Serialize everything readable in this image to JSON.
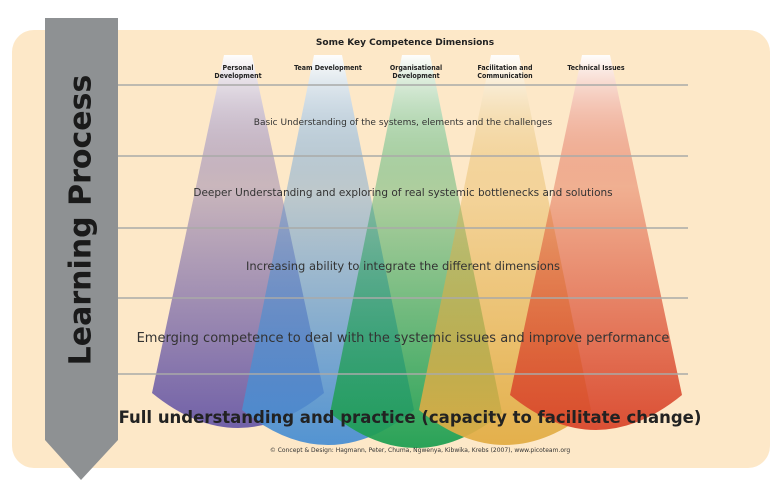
{
  "header": {
    "title": "Some Key Competence Dimensions"
  },
  "side_label": "Learning Process",
  "dimensions": [
    {
      "label": "Personal Development",
      "color": "#6a5aa6"
    },
    {
      "label": "Team Development",
      "color": "#4a8fd2"
    },
    {
      "label": "Organisational Development",
      "color": "#1f9f52"
    },
    {
      "label": "Facilitation and Communication",
      "color": "#e2ad45"
    },
    {
      "label": "Technical Issues",
      "color": "#d9472c"
    }
  ],
  "levels": [
    "Basic Understanding of the systems, elements and the challenges",
    "Deeper Understanding and exploring of real systemic bottlenecks and solutions",
    "Increasing ability to integrate the different dimensions",
    "Emerging competence to deal with the systemic issues and improve performance",
    "Full understanding and practice (capacity to facilitate change)"
  ],
  "credit": "© Concept & Design: Hagmann, Peter, Chuma, Ngwenya, Kibwika, Krebs (2007), www.picoteam.org",
  "colors": {
    "background": "#fde8c8",
    "arrow": "#8e9193",
    "lines": "#a9aaa8"
  }
}
